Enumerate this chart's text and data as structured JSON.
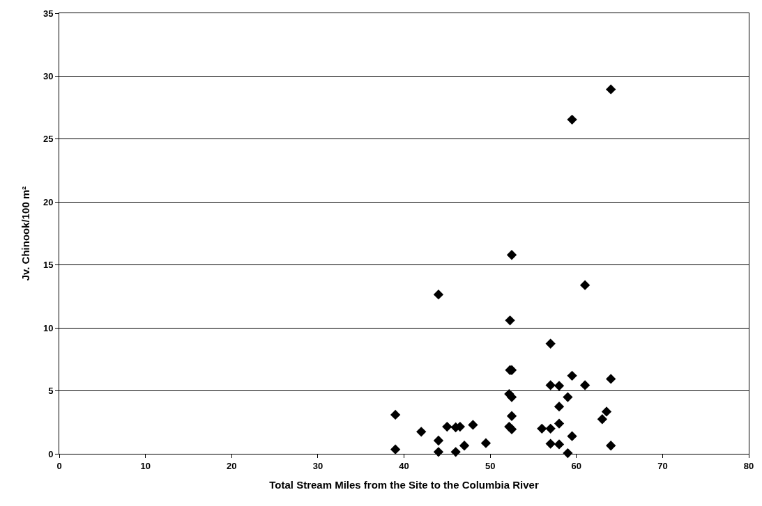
{
  "chart_data": {
    "type": "scatter",
    "xlabel": "Total Stream Miles from the Site to the Columbia River",
    "ylabel": "Jv. Chinook/100 m²",
    "x": [
      39,
      39,
      42,
      44,
      44,
      44,
      45,
      46,
      46.5,
      46,
      47,
      48,
      49.5,
      52.2,
      52.2,
      52.5,
      52.5,
      52.5,
      52.3,
      52.5,
      52.3,
      52.5,
      56,
      57,
      57,
      57,
      57,
      58,
      58,
      58,
      58,
      59,
      59,
      59.5,
      59.5,
      59.5,
      61,
      61,
      63,
      63.5,
      64,
      64,
      64
    ],
    "series": [
      {
        "color": "#000000",
        "values": [
          0.35,
          3.1,
          1.75,
          12.65,
          1.05,
          0.15,
          2.15,
          2.1,
          2.15,
          0.15,
          0.65,
          2.3,
          0.85,
          4.75,
          2.15,
          1.95,
          3.0,
          4.5,
          6.65,
          6.65,
          10.6,
          15.8,
          2.0,
          2.0,
          0.8,
          5.45,
          8.75,
          5.4,
          3.75,
          2.4,
          0.75,
          4.5,
          0.05,
          1.4,
          6.2,
          26.55,
          13.4,
          5.45,
          2.75,
          3.35,
          5.95,
          0.65,
          28.95
        ]
      }
    ],
    "xlim": [
      0,
      80
    ],
    "xticks": [
      0,
      10,
      20,
      30,
      40,
      50,
      60,
      70,
      80
    ],
    "ylim": [
      0,
      35
    ],
    "yticks": [
      0,
      5,
      10,
      15,
      20,
      25,
      30,
      35
    ],
    "grid": "y",
    "marker": "diamond"
  }
}
